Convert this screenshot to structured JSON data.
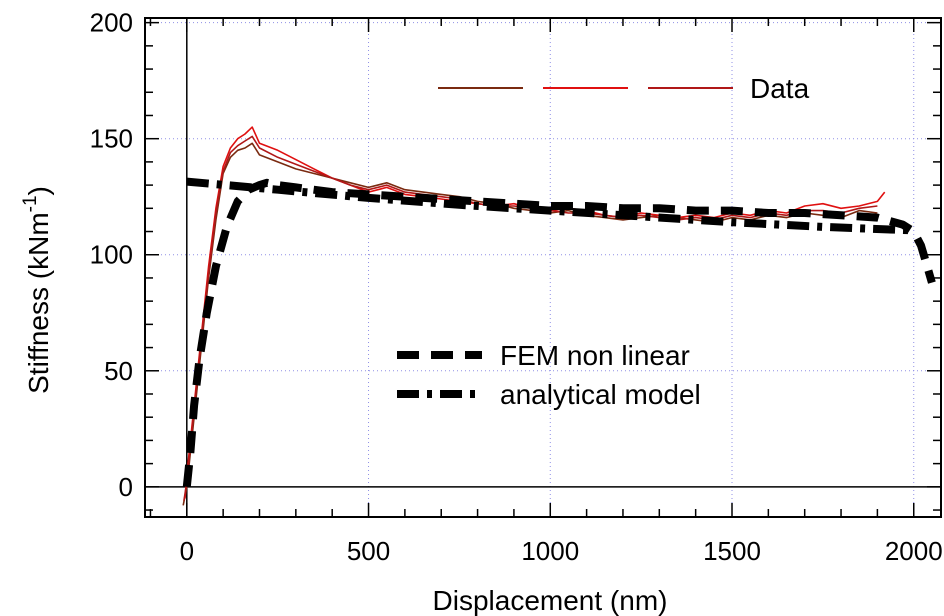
{
  "chart_data": {
    "type": "line",
    "xlabel": "Displacement (nm)",
    "ylabel": {
      "main": "Stiffness (kNm",
      "superscript": "-1",
      "close": ")"
    },
    "xlim": [
      -115,
      2075
    ],
    "ylim": [
      -13,
      202
    ],
    "xticks": [
      0,
      500,
      1000,
      1500,
      2000
    ],
    "yticks": [
      0,
      50,
      100,
      150,
      200
    ],
    "xtick_labels": [
      "0",
      "500",
      "1000",
      "1500",
      "2000"
    ],
    "ytick_labels": [
      "0",
      "50",
      "100",
      "150",
      "200"
    ],
    "grid": true,
    "colors": {
      "data_1": "#7a2a10",
      "data_2": "#e01010",
      "data_3": "#b01818",
      "fem": "#000000",
      "analytical": "#000000",
      "grid": "#8f8fe6"
    },
    "legend_top": {
      "label": "Data",
      "placement": "top-right"
    },
    "legend_models": {
      "fem_label": "FEM non linear",
      "analytical_label": "analytical model",
      "placement": "center"
    },
    "series": [
      {
        "name": "FEM non linear",
        "style": "dashed",
        "x": [
          0,
          10,
          20,
          35,
          55,
          80,
          110,
          140,
          170,
          200,
          220,
          250,
          300,
          400,
          500,
          600,
          700,
          800,
          900,
          1000,
          1100,
          1200,
          1300,
          1400,
          1500,
          1600,
          1700,
          1800,
          1900,
          1970,
          2000,
          2020,
          2035,
          2050
        ],
        "y": [
          0,
          15,
          35,
          55,
          75,
          95,
          112,
          123,
          128,
          130,
          131,
          130,
          129,
          127,
          126,
          125,
          124,
          123,
          122,
          121,
          121,
          120,
          120,
          119,
          119,
          118,
          118,
          117,
          116,
          113,
          110,
          104,
          96,
          88
        ]
      },
      {
        "name": "analytical model",
        "style": "dash-dot",
        "x": [
          0,
          250,
          500,
          750,
          1000,
          1250,
          1500,
          1750,
          2000
        ],
        "y": [
          131.5,
          128,
          124.5,
          121.5,
          119,
          116.5,
          114,
          112,
          110.5
        ]
      },
      {
        "style": "data-1",
        "x": [
          -10,
          0,
          20,
          40,
          60,
          80,
          100,
          120,
          140,
          160,
          180,
          200,
          250,
          300,
          350,
          400,
          450,
          500,
          550,
          600,
          650,
          700,
          750,
          800,
          850,
          900,
          950,
          1000,
          1050,
          1100,
          1150,
          1200,
          1250,
          1300,
          1350,
          1400,
          1450,
          1500,
          1550,
          1600,
          1650,
          1700,
          1750,
          1800,
          1850,
          1900
        ],
        "y": [
          -8,
          0,
          30,
          60,
          90,
          115,
          135,
          142,
          145,
          146,
          148,
          143,
          140,
          137,
          135,
          133,
          131,
          129,
          131,
          128,
          127,
          126,
          125,
          123,
          122,
          120,
          119,
          118,
          119,
          117,
          116,
          115,
          116,
          117,
          116,
          115,
          114,
          116,
          115,
          117,
          116,
          118,
          117,
          116,
          119,
          118
        ]
      },
      {
        "style": "data-2",
        "x": [
          -5,
          0,
          20,
          40,
          60,
          80,
          100,
          120,
          140,
          160,
          180,
          200,
          250,
          300,
          350,
          400,
          450,
          500,
          550,
          600,
          650,
          700,
          750,
          800,
          850,
          900,
          950,
          1000,
          1050,
          1100,
          1150,
          1200,
          1250,
          1300,
          1350,
          1400,
          1450,
          1500,
          1550,
          1600,
          1650,
          1700,
          1750,
          1800,
          1850,
          1900,
          1920
        ],
        "y": [
          -5,
          5,
          35,
          65,
          95,
          120,
          138,
          146,
          150,
          152,
          155,
          148,
          145,
          141,
          137,
          133,
          130,
          127,
          129,
          126,
          125,
          124,
          123,
          122,
          121,
          122,
          120,
          119,
          120,
          119,
          117,
          116,
          118,
          117,
          116,
          117,
          116,
          118,
          117,
          119,
          118,
          121,
          122,
          120,
          121,
          123,
          127
        ]
      },
      {
        "style": "data-3",
        "x": [
          -8,
          0,
          20,
          40,
          60,
          80,
          100,
          120,
          140,
          160,
          180,
          200,
          250,
          300,
          350,
          400,
          450,
          500,
          550,
          600,
          650,
          700,
          750,
          800,
          850,
          900,
          950,
          1000,
          1050,
          1100,
          1150,
          1200,
          1250,
          1300,
          1350,
          1400,
          1450,
          1500,
          1550,
          1600,
          1650,
          1700,
          1750,
          1800,
          1850,
          1900
        ],
        "y": [
          -6,
          2,
          33,
          63,
          92,
          118,
          136,
          144,
          147,
          149,
          151,
          146,
          142,
          139,
          136,
          133,
          130,
          128,
          130,
          127,
          126,
          125,
          124,
          122,
          121,
          121,
          120,
          119,
          118,
          118,
          117,
          116,
          117,
          116,
          115,
          116,
          115,
          117,
          116,
          118,
          117,
          119,
          119,
          118,
          120,
          121
        ]
      }
    ]
  }
}
